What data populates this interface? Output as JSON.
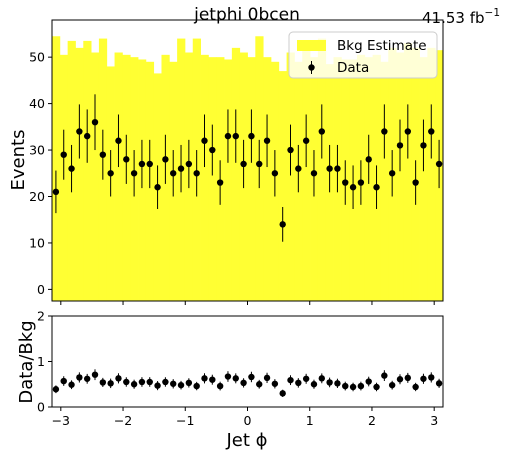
{
  "chart_data": [
    {
      "type": "bar",
      "title": "jetphi  0bcen",
      "lumi_value": "41.53 fb",
      "lumi_exponent": "−1",
      "xlabel": "",
      "ylabel": "Events",
      "xlim": [
        -3.1416,
        3.1416
      ],
      "ylim": [
        -2.5,
        58
      ],
      "yticks": [
        0,
        10,
        20,
        30,
        40,
        50
      ],
      "xticks": [
        -3,
        -2,
        -1,
        0,
        1,
        2,
        3
      ],
      "legend": {
        "position": "top-right",
        "entries": [
          "Bkg Estimate",
          "Data"
        ]
      },
      "colors": {
        "bkg": "#ffff33",
        "data": "#000000"
      },
      "nbins": 50,
      "series": [
        {
          "name": "Bkg Estimate",
          "kind": "filled-histogram",
          "values": [
            54.5,
            50.5,
            53.5,
            52.0,
            53.5,
            51.0,
            54.0,
            48.0,
            51.0,
            50.5,
            50.0,
            49.5,
            49.0,
            46.5,
            50.5,
            49.0,
            54.0,
            51.0,
            54.0,
            50.5,
            50.0,
            50.0,
            49.5,
            52.0,
            51.0,
            50.0,
            54.5,
            50.0,
            49.0,
            47.0,
            51.0,
            49.0,
            52.0,
            50.0,
            54.0,
            48.5,
            50.0,
            49.5,
            49.5,
            50.5,
            50.0,
            50.5,
            49.0,
            52.0,
            51.0,
            53.0,
            52.0,
            50.0,
            52.0,
            51.5
          ]
        },
        {
          "name": "Data",
          "kind": "points-with-errors",
          "values": [
            21,
            29,
            26,
            34,
            33,
            36,
            29,
            25,
            32,
            28,
            25,
            27,
            27,
            22,
            28,
            25,
            26,
            27,
            25,
            32,
            30,
            23,
            33,
            33,
            27,
            33,
            27,
            32,
            25,
            14,
            30,
            26,
            32,
            25,
            34,
            26,
            26,
            23,
            22,
            23,
            28,
            22,
            34,
            25,
            31,
            34,
            23,
            31,
            34,
            27
          ]
        }
      ]
    },
    {
      "type": "scatter",
      "xlabel": "Jet ϕ",
      "ylabel": "Data/Bkg",
      "xlim": [
        -3.1416,
        3.1416
      ],
      "ylim": [
        0,
        2
      ],
      "yticks": [
        0,
        1,
        2
      ],
      "xticks": [
        -3,
        -2,
        -1,
        0,
        1,
        2,
        3
      ],
      "series": [
        {
          "name": "",
          "values": [
            0.39,
            0.57,
            0.49,
            0.65,
            0.62,
            0.71,
            0.54,
            0.52,
            0.63,
            0.55,
            0.5,
            0.55,
            0.55,
            0.47,
            0.55,
            0.51,
            0.48,
            0.53,
            0.46,
            0.63,
            0.6,
            0.46,
            0.67,
            0.63,
            0.53,
            0.66,
            0.5,
            0.64,
            0.51,
            0.3,
            0.59,
            0.53,
            0.62,
            0.5,
            0.63,
            0.54,
            0.52,
            0.46,
            0.44,
            0.46,
            0.56,
            0.44,
            0.69,
            0.48,
            0.61,
            0.64,
            0.44,
            0.62,
            0.65,
            0.52
          ]
        }
      ]
    }
  ]
}
